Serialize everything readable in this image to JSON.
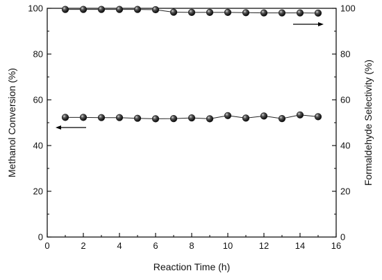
{
  "chart_data": {
    "type": "scatter",
    "title": "",
    "xlabel": "Reaction Time (h)",
    "ylabel": "Methanol Conversion (%)",
    "y2label": "Formaldehyde Selectivity (%)",
    "xlim": [
      0,
      16
    ],
    "ylim": [
      0,
      100
    ],
    "y2lim": [
      0,
      100
    ],
    "x_ticks": [
      0,
      2,
      4,
      6,
      8,
      10,
      12,
      14,
      16
    ],
    "y_ticks": [
      0,
      20,
      40,
      60,
      80,
      100
    ],
    "y2_ticks": [
      0,
      20,
      40,
      60,
      80,
      100
    ],
    "grid": false,
    "marker_color": "#1a1a1a",
    "series": [
      {
        "axis": "right",
        "x": [
          1,
          2,
          3,
          4,
          5,
          6,
          7,
          8,
          9,
          10,
          11,
          12,
          13,
          14,
          15
        ],
        "values": [
          99.5,
          99.5,
          99.5,
          99.5,
          99.5,
          99.4,
          98.3,
          98.2,
          98.2,
          98.2,
          98.1,
          98.0,
          98.0,
          98.0,
          97.9
        ]
      },
      {
        "axis": "left",
        "x": [
          1,
          2,
          3,
          4,
          5,
          6,
          7,
          8,
          9,
          10,
          11,
          12,
          13,
          14,
          15
        ],
        "values": [
          52.3,
          52.3,
          52.2,
          52.2,
          51.9,
          51.7,
          51.8,
          52.1,
          51.7,
          53.1,
          52.0,
          52.9,
          51.8,
          53.4,
          52.6
        ]
      }
    ]
  }
}
